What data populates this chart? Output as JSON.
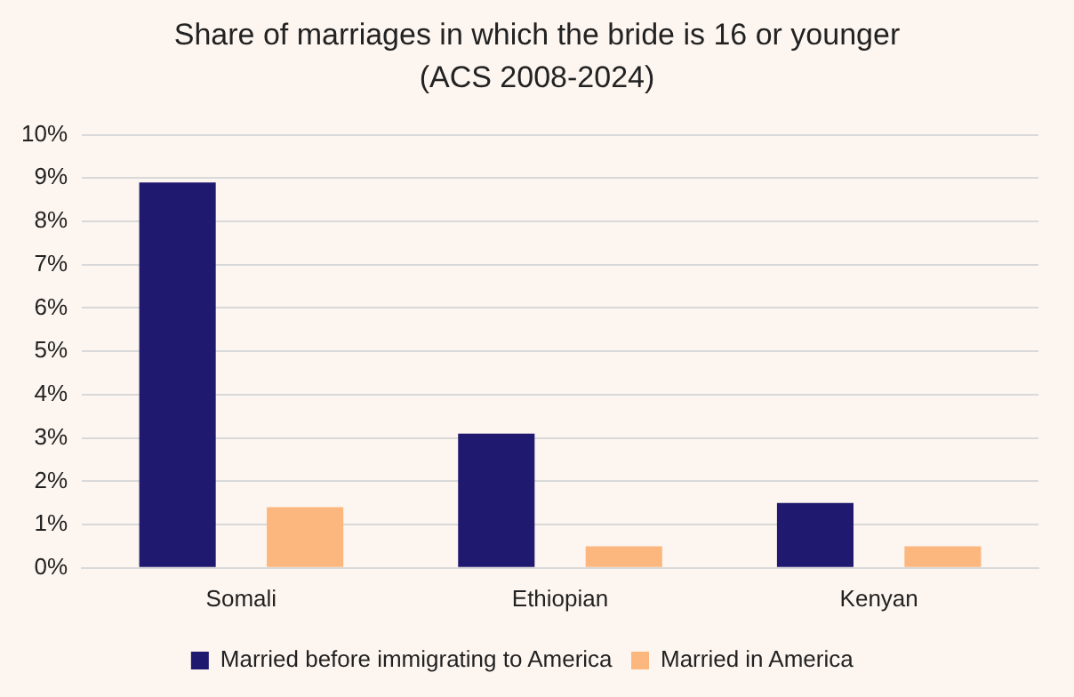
{
  "chart_data": {
    "type": "bar",
    "title": "Share of marriages in which the bride is 16 or younger (ACS 2008-2024)",
    "categories": [
      "Somali",
      "Ethiopian",
      "Kenyan"
    ],
    "series": [
      {
        "name": "Married before immigrating to America",
        "color": "#1f1a70",
        "values": [
          8.9,
          3.1,
          1.5
        ]
      },
      {
        "name": "Married in America",
        "color": "#fcb77e",
        "values": [
          1.4,
          0.5,
          0.5
        ]
      }
    ],
    "ylim": [
      0,
      10
    ],
    "yticks": [
      {
        "value": 0,
        "label": "0%"
      },
      {
        "value": 1,
        "label": "1%"
      },
      {
        "value": 2,
        "label": "2%"
      },
      {
        "value": 3,
        "label": "3%"
      },
      {
        "value": 4,
        "label": "4%"
      },
      {
        "value": 5,
        "label": "5%"
      },
      {
        "value": 6,
        "label": "6%"
      },
      {
        "value": 7,
        "label": "7%"
      },
      {
        "value": 8,
        "label": "8%"
      },
      {
        "value": 9,
        "label": "9%"
      },
      {
        "value": 10,
        "label": "10%"
      }
    ],
    "grid": "y",
    "legend": "bottom"
  }
}
